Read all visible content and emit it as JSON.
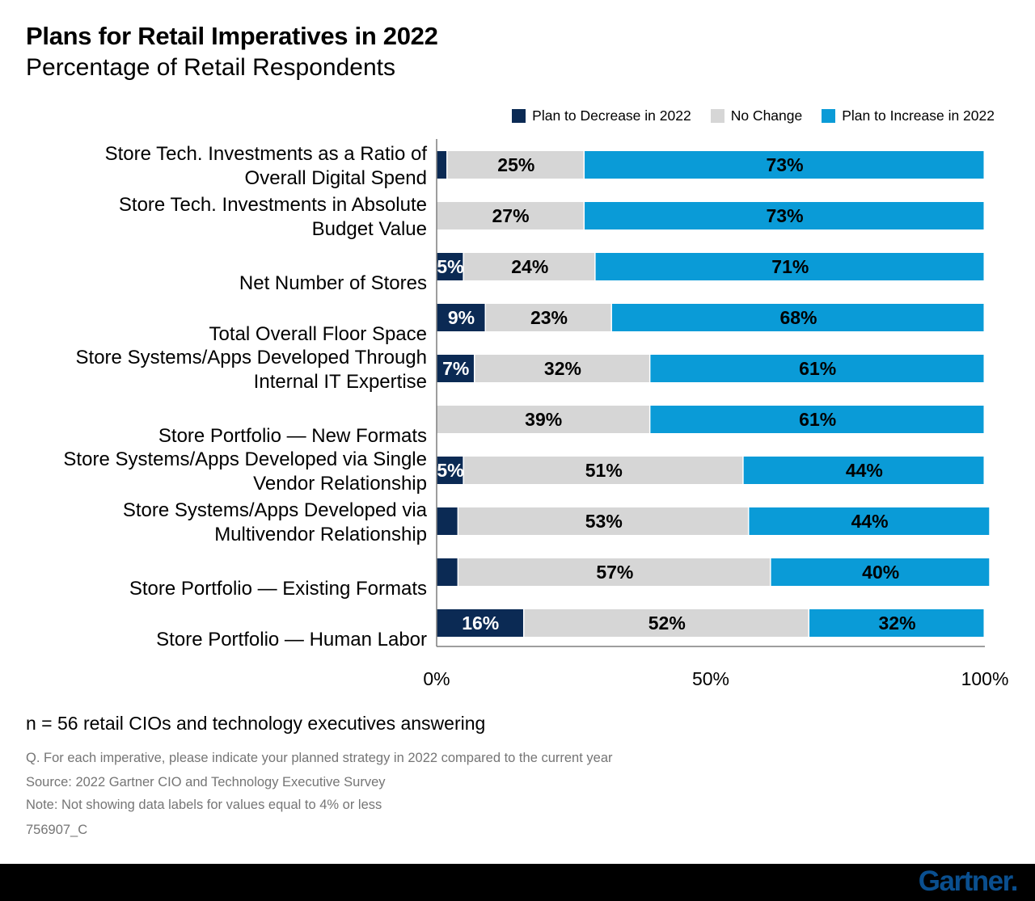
{
  "colors": {
    "decrease": "#0b2a54",
    "no_change": "#d6d6d6",
    "increase": "#0a9bd7",
    "axis": "#7f7f7f",
    "logo": "#0a4f8f"
  },
  "footer": {
    "sample": "n = 56 retail CIOs and technology executives answering",
    "question": "Q. For each imperative, please indicate your planned strategy in 2022 compared to the current year",
    "source": "Source: 2022 Gartner CIO and Technology Executive Survey",
    "note": "Note: Not showing data labels for values equal to 4% or less",
    "id": "756907_C",
    "logo": "Gartner."
  },
  "chart_data": {
    "type": "bar",
    "orientation": "horizontal",
    "stacked": true,
    "title": "Plans for Retail Imperatives in 2022",
    "subtitle": "Percentage of Retail Respondents",
    "legend_position": "top-right",
    "xlim": [
      0,
      100
    ],
    "xticks": [
      "0%",
      "50%",
      "100%"
    ],
    "categories": [
      [
        "Store Tech. Investments as a Ratio of",
        "Overall Digital Spend"
      ],
      [
        "Store Tech. Investments in Absolute",
        "Budget Value"
      ],
      [
        "Net Number of Stores"
      ],
      [
        "Total Overall Floor Space"
      ],
      [
        "Store Systems/Apps Developed Through",
        "Internal IT Expertise"
      ],
      [
        "Store Portfolio — New Formats"
      ],
      [
        "Store Systems/Apps Developed via Single",
        "Vendor Relationship"
      ],
      [
        "Store Systems/Apps Developed via",
        "Multivendor Relationship"
      ],
      [
        "Store Portfolio — Existing Formats"
      ],
      [
        "Store Portfolio — Human Labor"
      ]
    ],
    "series": [
      {
        "name": "Plan to Decrease in 2022",
        "key": "decrease",
        "values": [
          2,
          0,
          5,
          9,
          7,
          0,
          5,
          4,
          4,
          16
        ]
      },
      {
        "name": "No Change",
        "key": "no_change",
        "values": [
          25,
          27,
          24,
          23,
          32,
          39,
          51,
          53,
          57,
          52
        ]
      },
      {
        "name": "Plan to Increase in 2022",
        "key": "increase",
        "values": [
          73,
          73,
          71,
          68,
          61,
          61,
          44,
          44,
          40,
          32
        ]
      }
    ],
    "label_threshold": 4
  }
}
